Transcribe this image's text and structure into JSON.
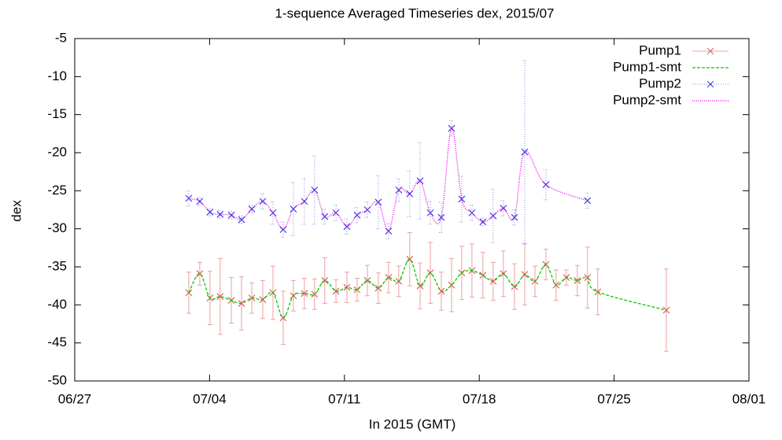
{
  "chart_data": {
    "type": "line",
    "title": "1-sequence Averaged Timeseries dex, 2015/07",
    "xlabel": "In 2015 (GMT)",
    "ylabel": "dex",
    "xlim": [
      0,
      35
    ],
    "xticks": [
      {
        "value": 0,
        "label": "06/27"
      },
      {
        "value": 7,
        "label": "07/04"
      },
      {
        "value": 14,
        "label": "07/11"
      },
      {
        "value": 21,
        "label": "07/18"
      },
      {
        "value": 28,
        "label": "07/25"
      },
      {
        "value": 35,
        "label": "08/01"
      }
    ],
    "ylim": [
      -50,
      -5
    ],
    "yticks": [
      -50,
      -45,
      -40,
      -35,
      -30,
      -25,
      -20,
      -15,
      -10,
      -5
    ],
    "legend": "top-right",
    "series": [
      {
        "name": "Pump1",
        "color": "#e06060",
        "style": "points",
        "x": [
          5.92,
          6.49,
          7.02,
          7.55,
          8.13,
          8.66,
          9.19,
          9.76,
          10.29,
          10.82,
          11.35,
          11.92,
          12.45,
          12.98,
          13.56,
          14.13,
          14.66,
          15.19,
          15.76,
          16.29,
          16.82,
          17.39,
          17.93,
          18.46,
          19.03,
          19.56,
          20.09,
          20.62,
          21.19,
          21.72,
          22.25,
          22.83,
          23.36,
          23.89,
          24.46,
          24.99,
          25.52,
          26.09,
          26.62,
          27.15,
          30.71
        ],
        "values": [
          -38.4,
          -35.9,
          -39.1,
          -38.9,
          -39.4,
          -39.8,
          -39.1,
          -39.3,
          -38.4,
          -41.7,
          -38.8,
          -38.5,
          -38.6,
          -36.8,
          -38.2,
          -37.7,
          -38.0,
          -36.8,
          -37.8,
          -36.4,
          -36.9,
          -34.0,
          -37.5,
          -35.8,
          -38.2,
          -37.4,
          -35.8,
          -35.5,
          -36.1,
          -36.9,
          -35.9,
          -37.6,
          -36.0,
          -36.9,
          -34.7,
          -37.4,
          -36.4,
          -36.8,
          -36.4,
          -38.3,
          -40.7
        ],
        "errors": [
          2.7,
          1.5,
          3.5,
          5,
          3,
          3.5,
          2,
          2.5,
          3.5,
          3.5,
          2,
          2,
          2,
          3,
          1.5,
          2,
          1.5,
          2,
          2,
          2,
          2,
          3.5,
          3,
          4,
          2.5,
          3.5,
          3.5,
          3.5,
          3,
          2.5,
          3,
          3,
          4,
          2,
          2,
          2,
          1,
          2,
          4,
          3,
          5.4
        ]
      },
      {
        "name": "Pump1-smt",
        "color": "#00cc00",
        "style": "smooth-dashed",
        "x": [
          5.92,
          6.49,
          7.02,
          7.55,
          8.13,
          8.66,
          9.19,
          9.76,
          10.29,
          10.82,
          11.35,
          11.92,
          12.45,
          12.98,
          13.56,
          14.13,
          14.66,
          15.19,
          15.76,
          16.29,
          16.82,
          17.39,
          17.93,
          18.46,
          19.03,
          19.56,
          20.09,
          20.62,
          21.19,
          21.72,
          22.25,
          22.83,
          23.36,
          23.89,
          24.46,
          24.99,
          25.52,
          26.09,
          26.62,
          27.15,
          30.71
        ],
        "values": [
          -38.4,
          -35.9,
          -39.1,
          -38.9,
          -39.4,
          -39.8,
          -39.1,
          -39.3,
          -38.4,
          -41.7,
          -38.8,
          -38.5,
          -38.6,
          -36.8,
          -38.2,
          -37.7,
          -38.0,
          -36.8,
          -37.8,
          -36.4,
          -36.9,
          -34.0,
          -37.5,
          -35.8,
          -38.2,
          -37.4,
          -35.8,
          -35.5,
          -36.1,
          -36.9,
          -35.9,
          -37.6,
          -36.0,
          -36.9,
          -34.7,
          -37.4,
          -36.4,
          -36.8,
          -36.4,
          -38.3,
          -40.7
        ]
      },
      {
        "name": "Pump2",
        "color": "#4040e0",
        "style": "points",
        "x": [
          5.92,
          6.49,
          7.02,
          7.55,
          8.13,
          8.66,
          9.19,
          9.76,
          10.29,
          10.82,
          11.35,
          11.92,
          12.45,
          12.98,
          13.56,
          14.13,
          14.66,
          15.19,
          15.76,
          16.29,
          16.82,
          17.39,
          17.93,
          18.46,
          19.03,
          19.56,
          20.09,
          20.62,
          21.19,
          21.72,
          22.25,
          22.83,
          23.36,
          24.46,
          26.62
        ],
        "values": [
          -26.0,
          -26.4,
          -27.8,
          -28.1,
          -28.2,
          -28.8,
          -27.4,
          -26.4,
          -27.9,
          -30.1,
          -27.4,
          -26.4,
          -24.9,
          -28.4,
          -27.9,
          -29.7,
          -28.2,
          -27.5,
          -26.5,
          -30.3,
          -24.9,
          -25.4,
          -23.7,
          -27.9,
          -28.5,
          -16.8,
          -26.1,
          -27.9,
          -29.1,
          -28.3,
          -27.3,
          -28.5,
          -19.9,
          -24.2,
          -26.3
        ],
        "errors": [
          1,
          0.5,
          0.5,
          0.5,
          0.5,
          0.5,
          0.5,
          1,
          1.5,
          1,
          3.5,
          3,
          4.5,
          1,
          1,
          1,
          1,
          1,
          3.5,
          1,
          1.5,
          3,
          5,
          1.5,
          2,
          1,
          3,
          1,
          0.5,
          3.5,
          1,
          1,
          12,
          2,
          1
        ]
      },
      {
        "name": "Pump2-smt",
        "color": "#e000e0",
        "style": "smooth-dotted",
        "x": [
          5.92,
          6.49,
          7.02,
          7.55,
          8.13,
          8.66,
          9.19,
          9.76,
          10.29,
          10.82,
          11.35,
          11.92,
          12.45,
          12.98,
          13.56,
          14.13,
          14.66,
          15.19,
          15.76,
          16.29,
          16.82,
          17.39,
          17.93,
          18.46,
          19.03,
          19.56,
          20.09,
          20.62,
          21.19,
          21.72,
          22.25,
          22.83,
          23.36,
          24.46,
          26.62
        ],
        "values": [
          -26.0,
          -26.4,
          -27.8,
          -28.1,
          -28.2,
          -28.8,
          -27.4,
          -26.4,
          -27.9,
          -30.1,
          -27.4,
          -26.4,
          -24.9,
          -28.4,
          -27.9,
          -29.7,
          -28.2,
          -27.5,
          -26.5,
          -30.3,
          -24.9,
          -25.4,
          -23.7,
          -27.9,
          -28.5,
          -16.8,
          -26.1,
          -27.9,
          -29.1,
          -28.3,
          -27.3,
          -28.5,
          -19.9,
          -24.2,
          -26.3
        ]
      }
    ]
  }
}
